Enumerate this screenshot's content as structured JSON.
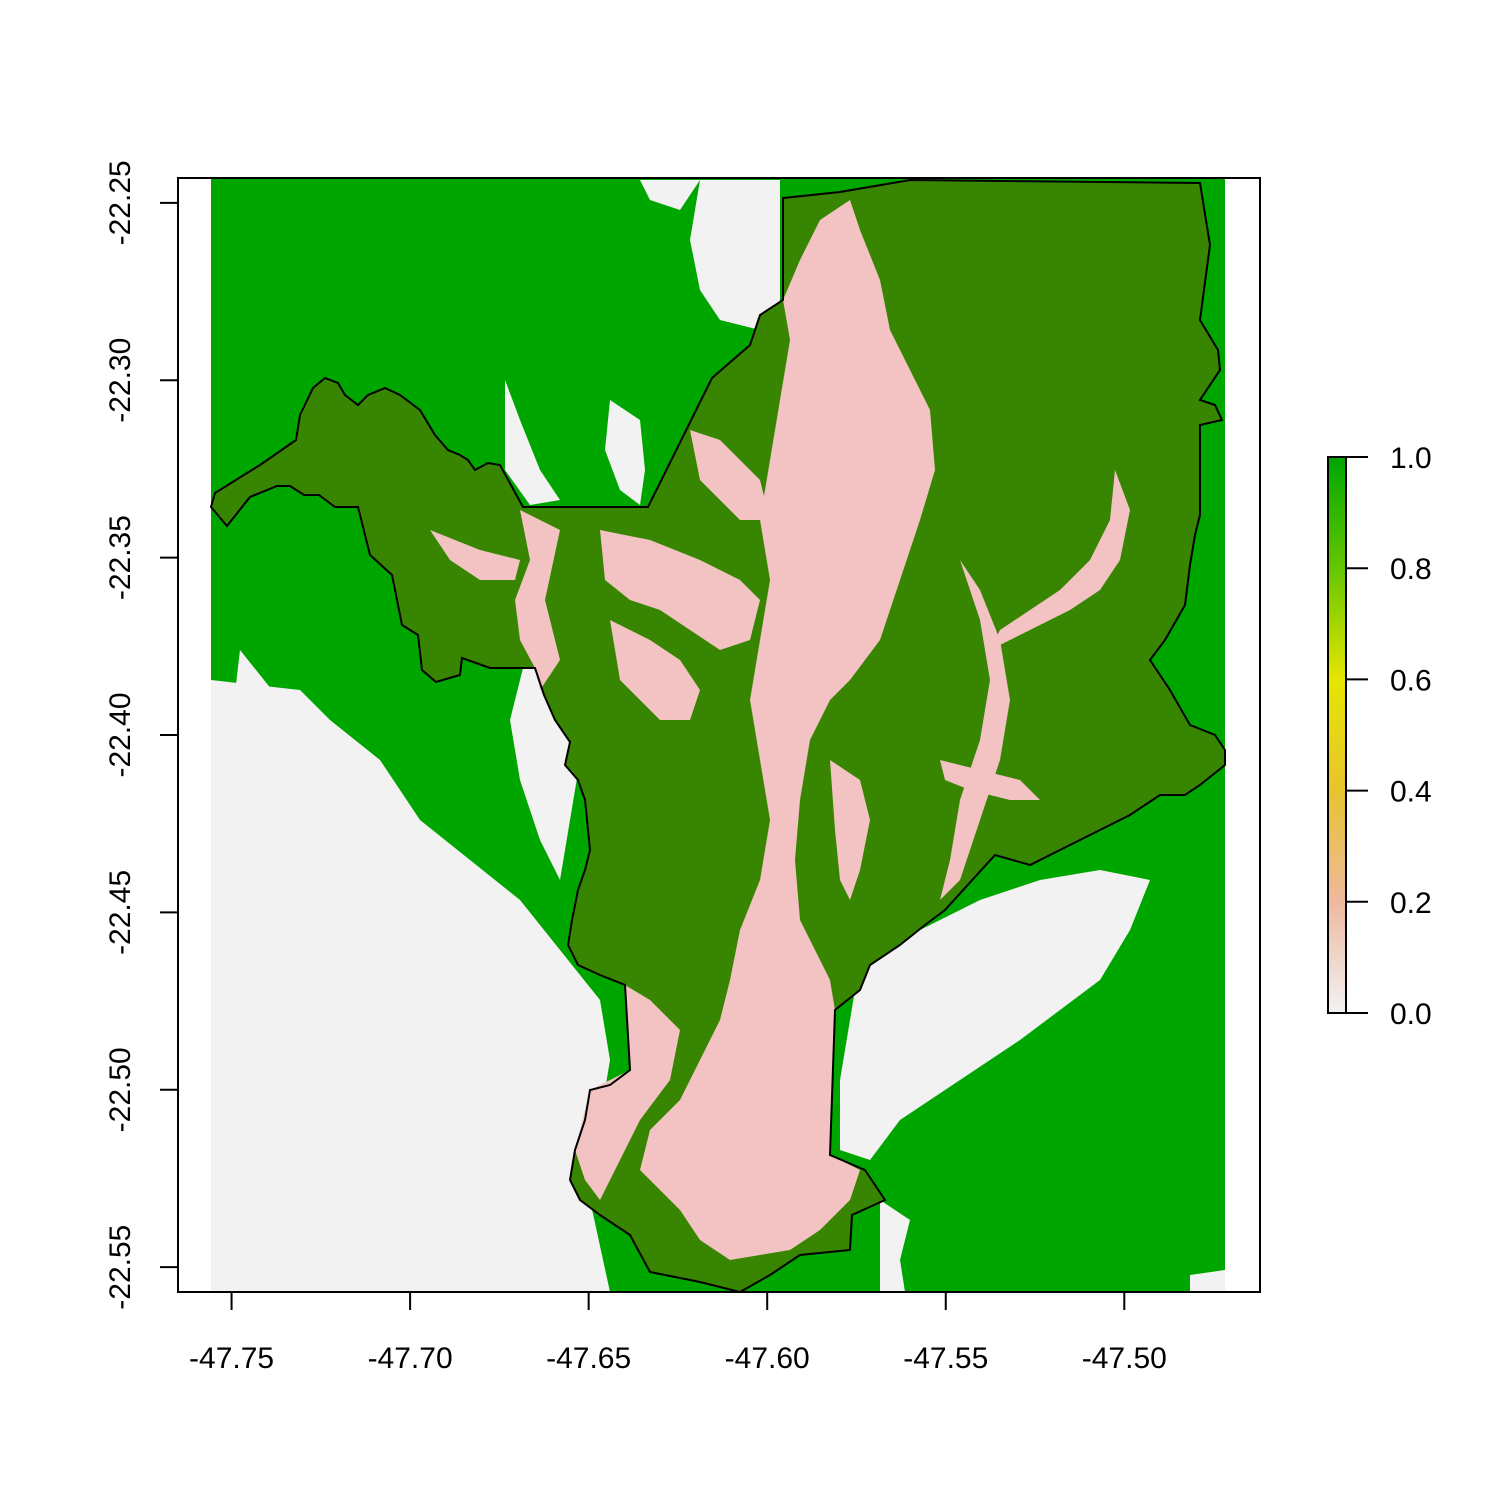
{
  "map": {
    "extent": {
      "lon": [
        -47.765,
        -47.462
      ],
      "lat": [
        -22.557,
        -22.243
      ]
    },
    "x_axis": {
      "ticks": [
        -47.75,
        -47.7,
        -47.65,
        -47.6,
        -47.55,
        -47.5
      ],
      "labels": [
        "-47.75",
        "-47.70",
        "-47.65",
        "-47.60",
        "-47.55",
        "-47.50"
      ]
    },
    "y_axis": {
      "ticks": [
        -22.25,
        -22.3,
        -22.35,
        -22.4,
        -22.45,
        -22.5,
        -22.55
      ],
      "labels": [
        "-22.25",
        "-22.30",
        "-22.35",
        "-22.40",
        "-22.45",
        "-22.50",
        "-22.55"
      ]
    },
    "colors": {
      "forest": "#00a600",
      "forest_inside_boundary": "#378500",
      "river_valley": "#f2f2f2",
      "valley_inside_boundary": "#f3c2c2",
      "boundary_line": "#000000"
    }
  },
  "legend": {
    "range": [
      0.0,
      1.0
    ],
    "ticks": [
      0.0,
      0.2,
      0.4,
      0.6,
      0.8,
      1.0
    ],
    "labels": [
      "0.0",
      "0.2",
      "0.4",
      "0.6",
      "0.8",
      "1.0"
    ],
    "color_stops": [
      "#f2f2f2",
      "#eeb99f",
      "#e8c32e",
      "#e6e600",
      "#63c600",
      "#00a600"
    ]
  }
}
